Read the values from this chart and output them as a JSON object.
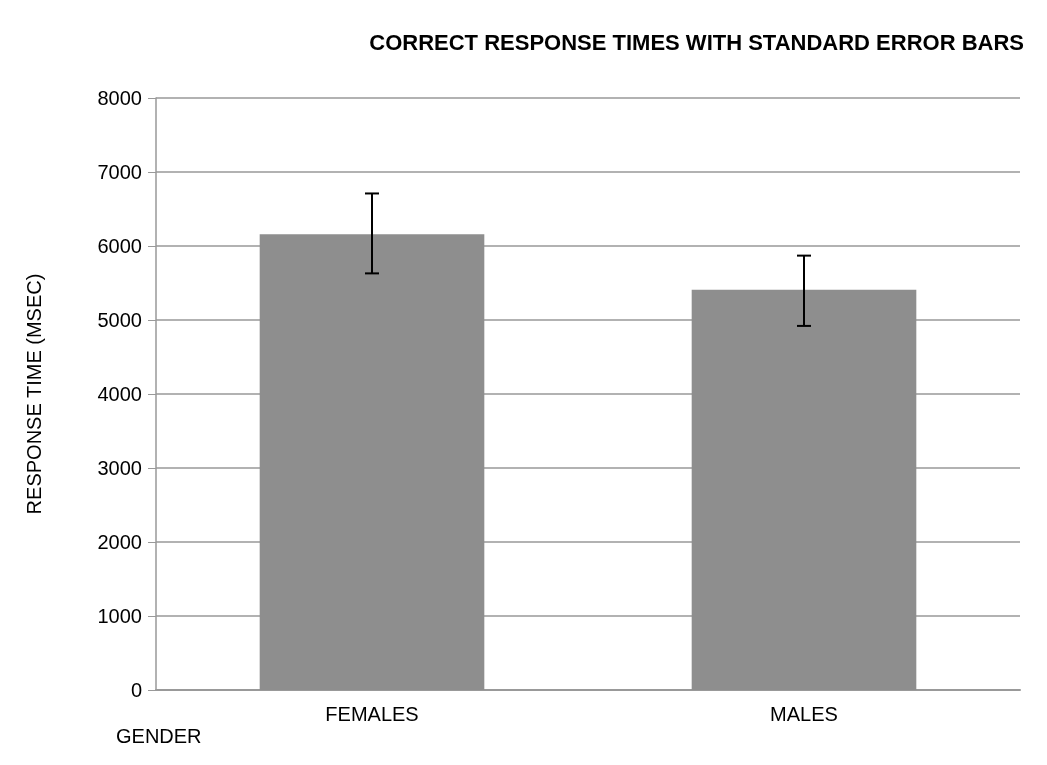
{
  "chart_data": {
    "type": "bar",
    "title": "CORRECT RESPONSE TIMES WITH STANDARD ERROR BARS",
    "xlabel": "GENDER",
    "ylabel": "RESPONSE TIME (MSEC)",
    "categories": [
      "FEMALES",
      "MALES"
    ],
    "values": [
      6160,
      5410
    ],
    "color": "#8e8e8e",
    "errors": [
      [
        5630,
        6710
      ],
      [
        4920,
        5870
      ]
    ],
    "ylim": [
      0,
      8000
    ],
    "yticks": [
      0,
      1000,
      2000,
      3000,
      4000,
      5000,
      6000,
      7000,
      8000
    ],
    "grid": "y"
  }
}
